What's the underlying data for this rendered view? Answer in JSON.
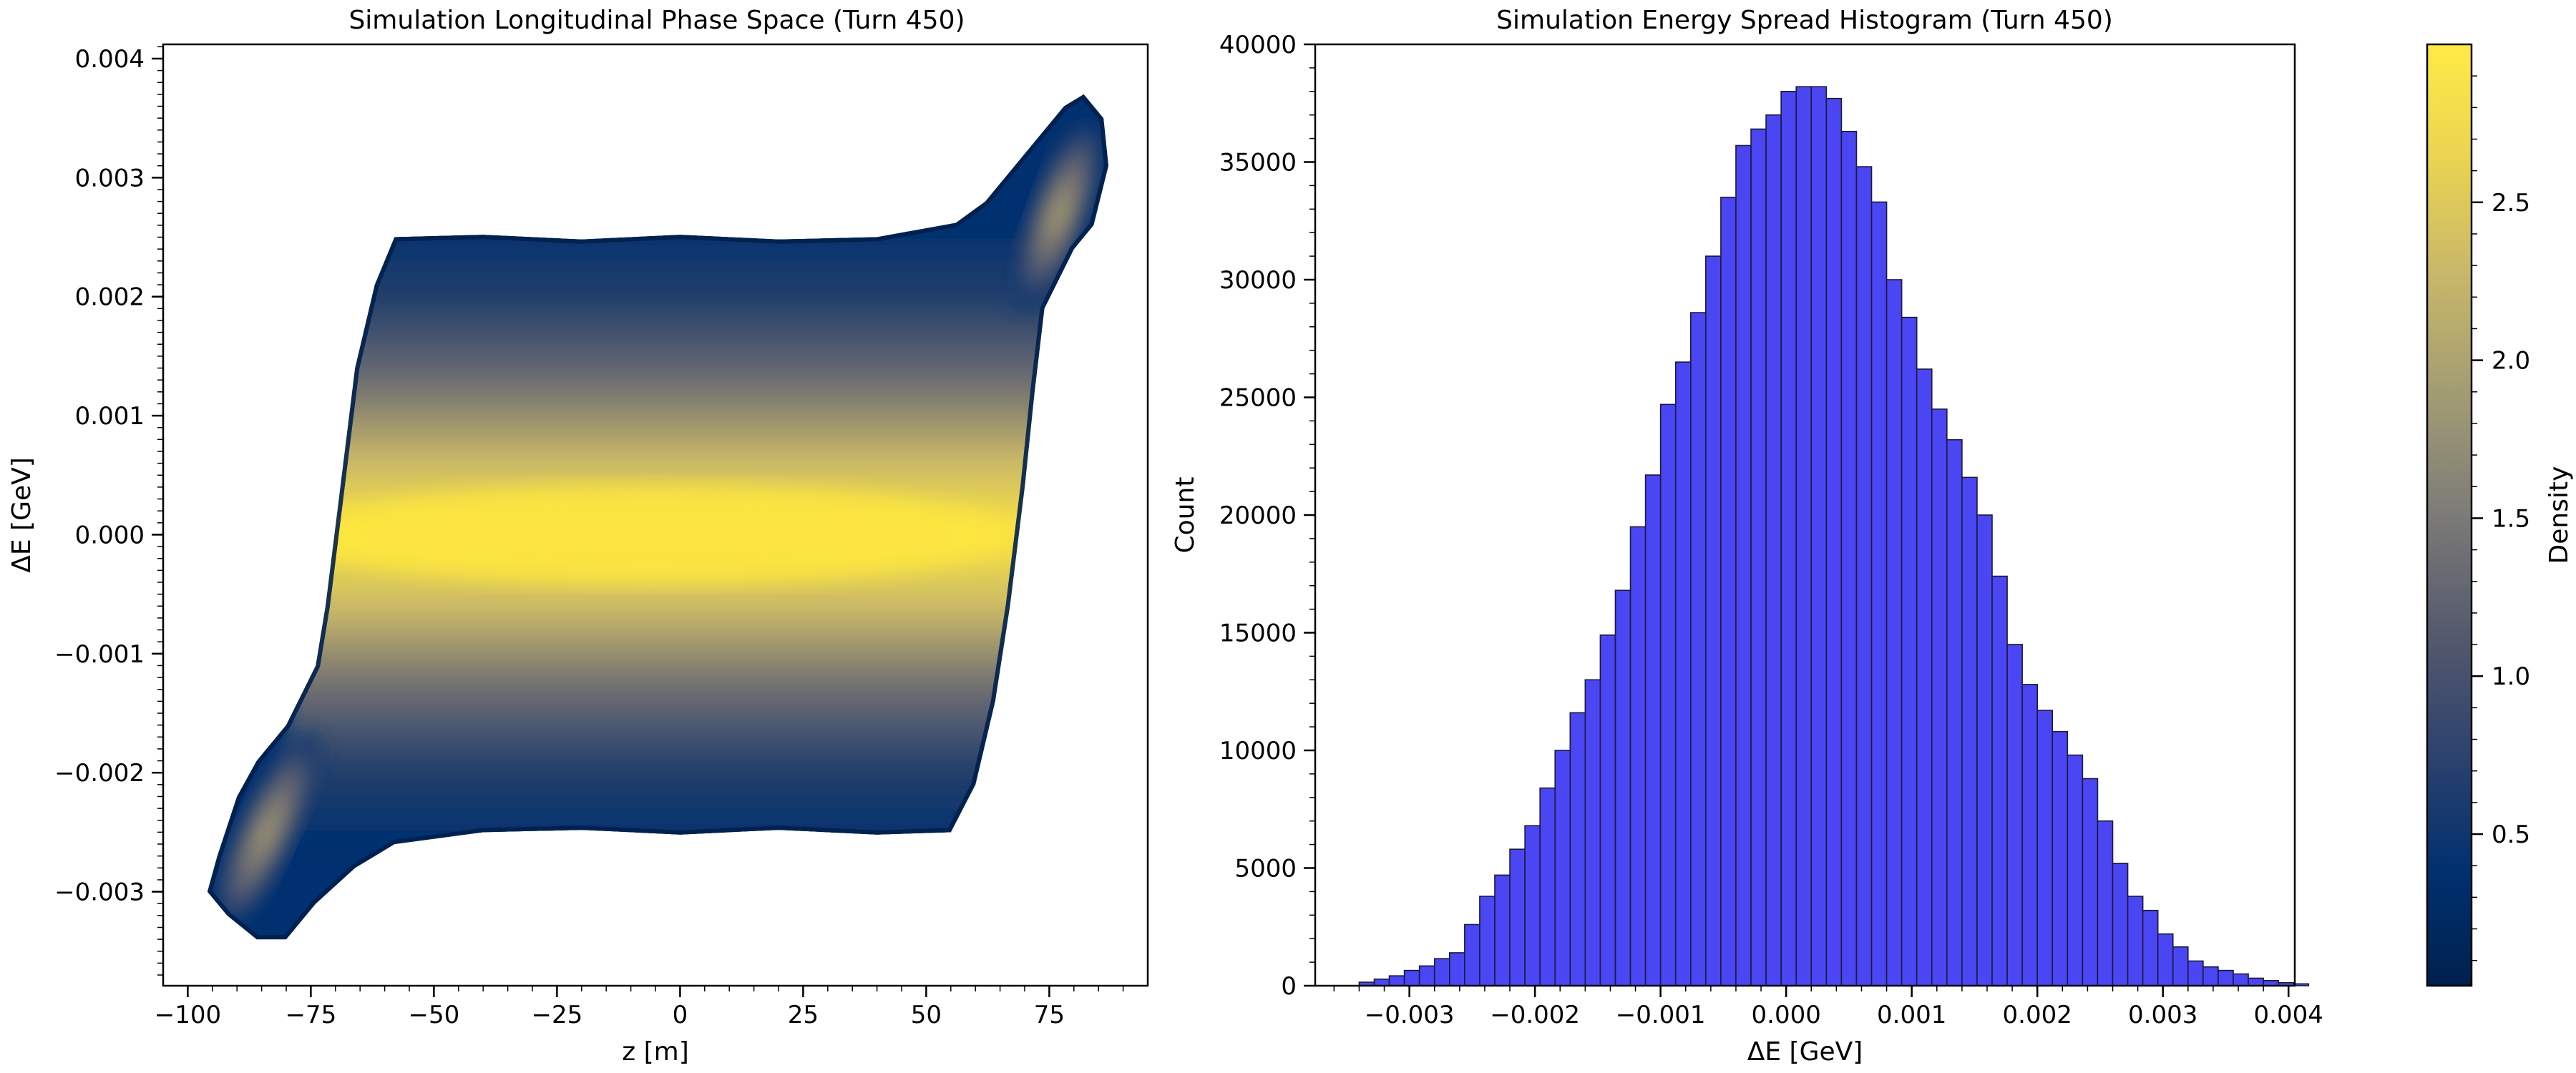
{
  "chart_data": [
    {
      "type": "scatter",
      "title": "Simulation Longitudinal Phase Space (Turn 450)",
      "xlabel": "z [m]",
      "ylabel": "ΔE [GeV]",
      "xlim": [
        -105,
        95
      ],
      "ylim": [
        -0.00379,
        0.00412
      ],
      "xticks": [
        -100,
        -75,
        -50,
        -25,
        0,
        25,
        50,
        75
      ],
      "xtick_labels": [
        "−100",
        "−75",
        "−50",
        "−25",
        "0",
        "25",
        "50",
        "75"
      ],
      "yticks": [
        -0.003,
        -0.002,
        -0.001,
        0.0,
        0.001,
        0.002,
        0.003,
        0.004
      ],
      "ytick_labels": [
        "−0.003",
        "−0.002",
        "−0.001",
        "0.000",
        "0.001",
        "0.002",
        "0.003",
        "0.004"
      ],
      "distribution": {
        "description_values": "particle density region",
        "z_range": [
          -97,
          87
        ],
        "dE_range": [
          -0.0034,
          0.0038
        ],
        "core_dE_halfwidth": 0.0025,
        "density_peak": 3.0
      },
      "colormap": "cividis",
      "grid": false
    },
    {
      "type": "bar",
      "title": "Simulation Energy Spread Histogram (Turn 450)",
      "xlabel": "ΔE [GeV]",
      "ylabel": "Count",
      "xlim": [
        -0.00375,
        0.00405
      ],
      "ylim": [
        0,
        40000
      ],
      "xticks": [
        -0.003,
        -0.002,
        -0.001,
        0.0,
        0.001,
        0.002,
        0.003,
        0.004
      ],
      "xtick_labels": [
        "−0.003",
        "−0.002",
        "−0.001",
        "0.000",
        "0.001",
        "0.002",
        "0.003",
        "0.004"
      ],
      "yticks": [
        0,
        5000,
        10000,
        15000,
        20000,
        25000,
        30000,
        35000,
        40000
      ],
      "ytick_labels": [
        "0",
        "5000",
        "10000",
        "15000",
        "20000",
        "25000",
        "30000",
        "35000",
        "40000"
      ],
      "bin_start": -0.0034,
      "bin_width": 0.00012,
      "values": [
        150,
        280,
        420,
        650,
        840,
        1150,
        1400,
        2600,
        3800,
        4700,
        5800,
        6800,
        8400,
        10000,
        11600,
        13000,
        14900,
        16800,
        19500,
        21700,
        24700,
        26500,
        28600,
        31000,
        33500,
        35700,
        36400,
        37000,
        38000,
        38200,
        38200,
        37700,
        36300,
        34800,
        33300,
        30000,
        28400,
        26200,
        24500,
        23200,
        21600,
        20000,
        17400,
        14500,
        12800,
        11700,
        10800,
        9800,
        8800,
        7000,
        5200,
        3800,
        3200,
        2200,
        1650,
        1050,
        800,
        650,
        500,
        320,
        220,
        130,
        80
      ],
      "bar_color": "#4b46f4",
      "edge_color": "#1a1a3a",
      "grid": false
    }
  ],
  "colorbar": {
    "label": "Density",
    "colormap": "cividis",
    "range": [
      0.02,
      3.0
    ],
    "ticks": [
      0.5,
      1.0,
      1.5,
      2.0,
      2.5
    ],
    "tick_labels": [
      "0.5",
      "1.0",
      "1.5",
      "2.0",
      "2.5"
    ]
  }
}
